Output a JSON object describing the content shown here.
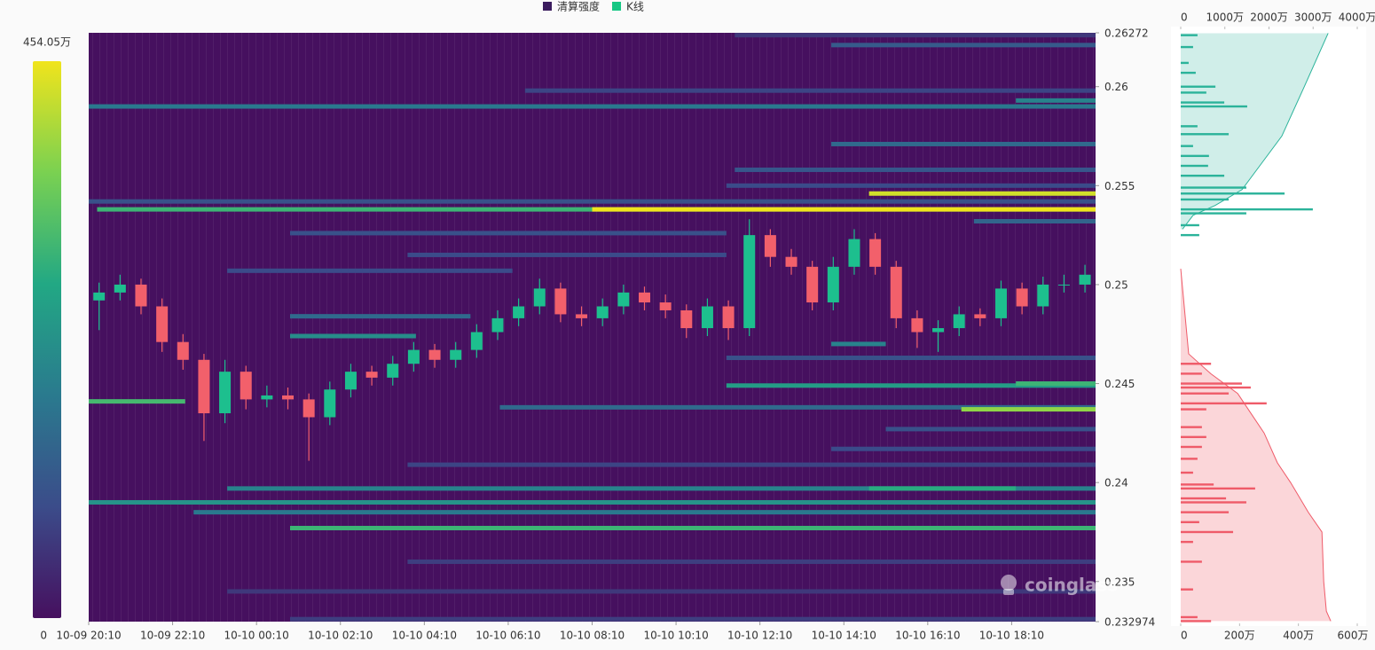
{
  "chart_data": [
    {
      "type": "heatmap",
      "legend": [
        {
          "name": "清算强度",
          "color": "#3b1c5e"
        },
        {
          "name": "K线",
          "color": "#16c784"
        }
      ],
      "watermark": "coinglass",
      "colors": [
        "#46105f",
        "#3b4c8a",
        "#2a7a8e",
        "#22a884",
        "#7ad151",
        "#f0e41c"
      ],
      "zlim": [
        0,
        454.05
      ],
      "zticks": [
        0,
        {
          "value": 454.05,
          "label": "454.05万"
        }
      ],
      "xlim": [
        0,
        24
      ],
      "xticks": [
        {
          "value": 0,
          "label": "10-09 20:10"
        },
        {
          "value": 2,
          "label": "10-09 22:10"
        },
        {
          "value": 4,
          "label": "10-10 00:10"
        },
        {
          "value": 6,
          "label": "10-10 02:10"
        },
        {
          "value": 8,
          "label": "10-10 04:10"
        },
        {
          "value": 10,
          "label": "10-10 06:10"
        },
        {
          "value": 12,
          "label": "10-10 08:10"
        },
        {
          "value": 14,
          "label": "10-10 10:10"
        },
        {
          "value": 16,
          "label": "10-10 12:10"
        },
        {
          "value": 18,
          "label": "10-10 14:10"
        },
        {
          "value": 20,
          "label": "10-10 16:10"
        },
        {
          "value": 22,
          "label": "10-10 18:10"
        }
      ],
      "ylim": [
        0.232974,
        0.26272
      ],
      "yticks": [
        0.26272,
        0.26,
        0.255,
        0.25,
        0.245,
        0.24,
        0.235,
        0.232974
      ],
      "bands": [
        {
          "price": 0.2626,
          "x0": 15.4,
          "x1": 24,
          "value": 60
        },
        {
          "price": 0.2621,
          "x0": 17.7,
          "x1": 24,
          "value": 120
        },
        {
          "price": 0.2598,
          "x0": 10.4,
          "x1": 24,
          "value": 80
        },
        {
          "price": 0.2593,
          "x0": 22.1,
          "x1": 24,
          "value": 200
        },
        {
          "price": 0.259,
          "x0": 0,
          "x1": 24,
          "value": 180
        },
        {
          "price": 0.2571,
          "x0": 17.7,
          "x1": 24,
          "value": 150
        },
        {
          "price": 0.2558,
          "x0": 15.4,
          "x1": 24,
          "value": 110
        },
        {
          "price": 0.255,
          "x0": 15.2,
          "x1": 24,
          "value": 90
        },
        {
          "price": 0.2546,
          "x0": 18.6,
          "x1": 24,
          "value": 430
        },
        {
          "price": 0.2542,
          "x0": 0,
          "x1": 24,
          "value": 100
        },
        {
          "price": 0.2538,
          "x0": 0.2,
          "x1": 24,
          "value": 300
        },
        {
          "price": 0.2538,
          "x0": 12,
          "x1": 24,
          "value": 454
        },
        {
          "price": 0.2532,
          "x0": 21.1,
          "x1": 24,
          "value": 140
        },
        {
          "price": 0.2526,
          "x0": 4.8,
          "x1": 15.2,
          "value": 100
        },
        {
          "price": 0.2515,
          "x0": 7.6,
          "x1": 15.2,
          "value": 90
        },
        {
          "price": 0.2507,
          "x0": 3.3,
          "x1": 10.1,
          "value": 90
        },
        {
          "price": 0.2484,
          "x0": 4.8,
          "x1": 9.1,
          "value": 150
        },
        {
          "price": 0.2474,
          "x0": 4.8,
          "x1": 7.8,
          "value": 220
        },
        {
          "price": 0.247,
          "x0": 17.7,
          "x1": 19,
          "value": 200
        },
        {
          "price": 0.2463,
          "x0": 15.2,
          "x1": 24,
          "value": 100
        },
        {
          "price": 0.2449,
          "x0": 15.2,
          "x1": 24,
          "value": 250
        },
        {
          "price": 0.245,
          "x0": 22.1,
          "x1": 24,
          "value": 300
        },
        {
          "price": 0.2441,
          "x0": 0,
          "x1": 2.3,
          "value": 310
        },
        {
          "price": 0.2438,
          "x0": 9.8,
          "x1": 24,
          "value": 150
        },
        {
          "price": 0.2437,
          "x0": 20.8,
          "x1": 24,
          "value": 380
        },
        {
          "price": 0.2427,
          "x0": 19,
          "x1": 24,
          "value": 100
        },
        {
          "price": 0.2417,
          "x0": 17.7,
          "x1": 24,
          "value": 90
        },
        {
          "price": 0.2409,
          "x0": 7.6,
          "x1": 24,
          "value": 80
        },
        {
          "price": 0.2397,
          "x0": 3.3,
          "x1": 24,
          "value": 200
        },
        {
          "price": 0.2397,
          "x0": 18.6,
          "x1": 22.1,
          "value": 280
        },
        {
          "price": 0.239,
          "x0": 0,
          "x1": 24,
          "value": 230
        },
        {
          "price": 0.2385,
          "x0": 2.5,
          "x1": 24,
          "value": 180
        },
        {
          "price": 0.2377,
          "x0": 4.8,
          "x1": 24,
          "value": 300
        },
        {
          "price": 0.236,
          "x0": 7.6,
          "x1": 24,
          "value": 70
        },
        {
          "price": 0.2345,
          "x0": 3.3,
          "x1": 24,
          "value": 60
        },
        {
          "price": 0.2331,
          "x0": 4.8,
          "x1": 24,
          "value": 70
        }
      ],
      "up_color": "#1dbf8e",
      "down_color": "#f2606b",
      "candles": {
        "x": [
          0,
          0.5,
          1,
          1.5,
          2,
          2.5,
          3,
          3.5,
          4,
          4.5,
          5,
          5.5,
          6,
          6.5,
          7,
          7.5,
          8,
          8.5,
          9,
          9.5,
          10,
          10.5,
          11,
          11.5,
          12,
          12.5,
          13,
          13.5,
          14,
          14.5,
          15,
          15.5,
          16,
          16.5,
          17,
          17.5,
          18,
          18.5,
          19,
          19.5,
          20,
          20.5,
          21,
          21.5,
          22,
          22.5,
          23,
          23.5
        ],
        "open": [
          0.2492,
          0.2496,
          0.25,
          0.2489,
          0.2471,
          0.2462,
          0.2435,
          0.2456,
          0.2442,
          0.2444,
          0.2442,
          0.2433,
          0.2447,
          0.2456,
          0.2453,
          0.246,
          0.2467,
          0.2462,
          0.2467,
          0.2476,
          0.2483,
          0.2489,
          0.2498,
          0.2485,
          0.2483,
          0.2489,
          0.2496,
          0.2491,
          0.2487,
          0.2478,
          0.2489,
          0.2478,
          0.2525,
          0.2514,
          0.2509,
          0.2491,
          0.2509,
          0.2523,
          0.2509,
          0.2483,
          0.2476,
          0.2478,
          0.2485,
          0.2483,
          0.2498,
          0.2489,
          0.25,
          0.25
        ],
        "high": [
          0.2501,
          0.2505,
          0.2503,
          0.2493,
          0.2475,
          0.2465,
          0.2462,
          0.2459,
          0.2449,
          0.2448,
          0.2445,
          0.2451,
          0.246,
          0.2459,
          0.2464,
          0.2471,
          0.247,
          0.2471,
          0.248,
          0.2487,
          0.2493,
          0.2503,
          0.2501,
          0.2489,
          0.2493,
          0.25,
          0.2499,
          0.2495,
          0.249,
          0.2493,
          0.2492,
          0.2533,
          0.2528,
          0.2518,
          0.2512,
          0.2514,
          0.2528,
          0.2526,
          0.2512,
          0.2487,
          0.2482,
          0.2489,
          0.2488,
          0.2502,
          0.2501,
          0.2504,
          0.2505,
          0.251
        ],
        "low": [
          0.2477,
          0.2492,
          0.2485,
          0.2466,
          0.2457,
          0.2421,
          0.243,
          0.2437,
          0.2438,
          0.2437,
          0.2411,
          0.2429,
          0.2443,
          0.2449,
          0.2449,
          0.2456,
          0.2458,
          0.2458,
          0.2463,
          0.2472,
          0.2479,
          0.2485,
          0.2481,
          0.2479,
          0.2479,
          0.2485,
          0.2487,
          0.2483,
          0.2473,
          0.2474,
          0.2472,
          0.2474,
          0.2509,
          0.2505,
          0.2487,
          0.2487,
          0.2505,
          0.2505,
          0.2478,
          0.2468,
          0.2466,
          0.2474,
          0.2479,
          0.2479,
          0.2485,
          0.2485,
          0.2496,
          0.2496
        ],
        "close": [
          0.2496,
          0.25,
          0.2489,
          0.2471,
          0.2462,
          0.2435,
          0.2456,
          0.2442,
          0.2444,
          0.2442,
          0.2433,
          0.2447,
          0.2456,
          0.2453,
          0.246,
          0.2467,
          0.2462,
          0.2467,
          0.2476,
          0.2483,
          0.2489,
          0.2498,
          0.2485,
          0.2483,
          0.2489,
          0.2496,
          0.2491,
          0.2487,
          0.2478,
          0.2489,
          0.2478,
          0.2525,
          0.2514,
          0.2509,
          0.2491,
          0.2509,
          0.2523,
          0.2509,
          0.2483,
          0.2476,
          0.2478,
          0.2485,
          0.2483,
          0.2498,
          0.2489,
          0.25,
          0.25,
          0.2505
        ]
      }
    },
    {
      "type": "depth",
      "ylim": [
        0.232974,
        0.26272
      ],
      "x2lim": [
        0,
        4000
      ],
      "x2ticks": [
        0,
        {
          "value": 1000,
          "label": "1000万"
        },
        {
          "value": 2000,
          "label": "2000万"
        },
        {
          "value": 3000,
          "label": "3000万"
        },
        {
          "value": 4000,
          "label": "4000万"
        }
      ],
      "xlim": [
        0,
        600
      ],
      "xticks": [
        0,
        {
          "value": 200,
          "label": "200万"
        },
        {
          "value": 400,
          "label": "400万"
        },
        {
          "value": 600,
          "label": "600万"
        }
      ],
      "series": [
        {
          "color": "#2bb39a",
          "fill": "rgba(43,179,154,0.22)",
          "prices": [
            0.2626,
            0.262,
            0.2612,
            0.2607,
            0.26,
            0.2597,
            0.2592,
            0.259,
            0.258,
            0.2576,
            0.257,
            0.2565,
            0.256,
            0.2555,
            0.2549,
            0.2546,
            0.2543,
            0.2538,
            0.2536,
            0.253,
            0.2525
          ],
          "values": [
            57,
            42,
            27,
            51,
            118,
            87,
            148,
            226,
            57,
            163,
            42,
            96,
            93,
            148,
            223,
            353,
            163,
            449,
            223,
            63,
            63
          ],
          "cumulative_prices": [
            0.2627,
            0.26,
            0.2575,
            0.256,
            0.2548,
            0.254,
            0.2535,
            0.2528
          ],
          "cumulative": [
            3340,
            2800,
            2290,
            1790,
            1390,
            780,
            280,
            40
          ]
        },
        {
          "color": "#ef5b69",
          "fill": "rgba(239,91,105,0.25)",
          "prices": [
            0.246,
            0.2455,
            0.245,
            0.2448,
            0.2445,
            0.244,
            0.2437,
            0.2428,
            0.2423,
            0.2418,
            0.2412,
            0.2405,
            0.2399,
            0.2397,
            0.2392,
            0.239,
            0.2385,
            0.238,
            0.2375,
            0.237,
            0.236,
            0.2346,
            0.2332,
            0.233
          ],
          "values": [
            103,
            72,
            208,
            238,
            163,
            292,
            87,
            72,
            87,
            72,
            57,
            42,
            112,
            253,
            154,
            223,
            163,
            63,
            178,
            42,
            72,
            42,
            57,
            103
          ],
          "cumulative_prices": [
            0.2508,
            0.2465,
            0.2455,
            0.2445,
            0.2435,
            0.2425,
            0.241,
            0.24,
            0.2385,
            0.2375,
            0.235,
            0.2335,
            0.233
          ],
          "cumulative": [
            0,
            180,
            680,
            1290,
            1590,
            1890,
            2190,
            2490,
            2890,
            3200,
            3240,
            3300,
            3400
          ]
        }
      ]
    }
  ]
}
